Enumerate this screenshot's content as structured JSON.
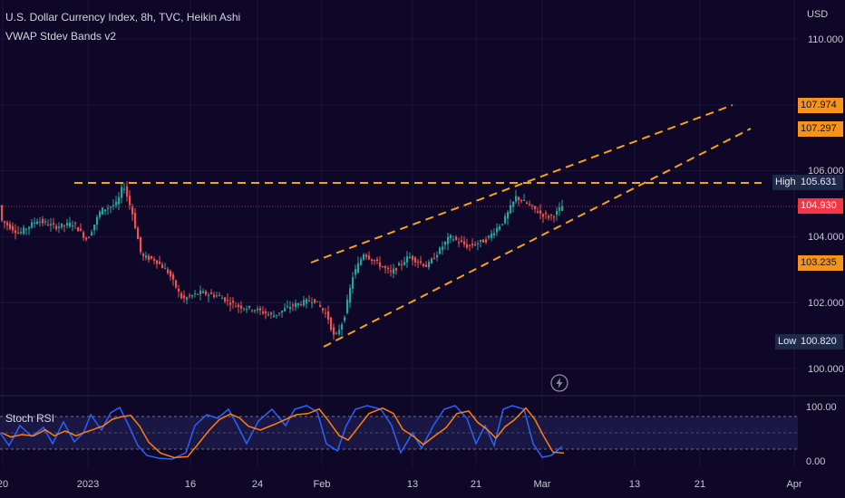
{
  "header": {
    "symbol_line": "U.S. Dollar Currency Index, 8h, TVC, Heikin Ashi",
    "indicator_line": "VWAP Stdev Bands v2"
  },
  "axis": {
    "currency": "USD",
    "price_ticks": [
      "110.000",
      "106.000",
      "104.000",
      "102.000",
      "100.000"
    ],
    "rsi_ticks": [
      "100.00",
      "0.00"
    ],
    "time_ticks": [
      "20",
      "2023",
      "16",
      "24",
      "Feb",
      "13",
      "21",
      "Mar",
      "13",
      "21",
      "Apr"
    ]
  },
  "price_tags": {
    "band_upper_1": "107.974",
    "band_upper_2": "107.297",
    "high_label": "High",
    "high_value": "105.631",
    "last_price": "104.930",
    "band_lower": "103.235",
    "low_label": "Low",
    "low_value": "100.820"
  },
  "indicator": {
    "rsi_title": "Stoch RSI"
  },
  "colors": {
    "background": "#0f0728",
    "bull": "#26a69a",
    "bear": "#ef5350",
    "trendline": "#f7a21b",
    "tag_orange": "#f7931a",
    "tag_navy": "#1e2a4a",
    "last_price": "#f23645",
    "stoch_k": "#2962ff",
    "stoch_d": "#ff7f0e"
  },
  "icons": {
    "replay": "lightning-icon"
  }
}
